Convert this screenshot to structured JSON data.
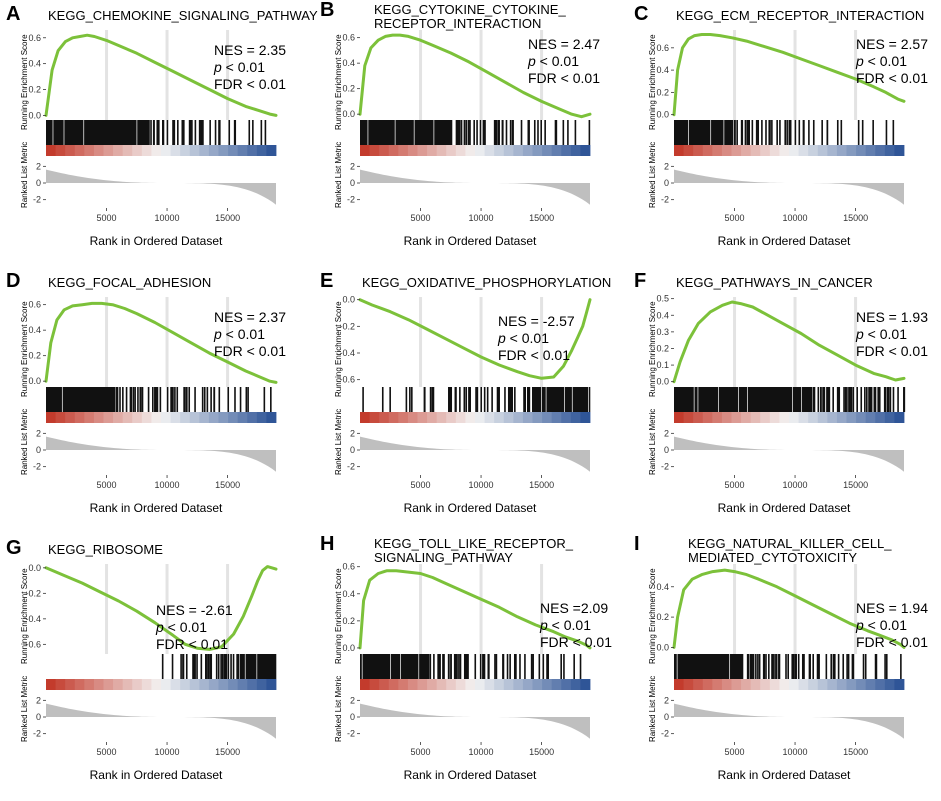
{
  "colors": {
    "curve": "#7cc13a",
    "hits": "#111111",
    "gridline": "#e3e3e3",
    "metric_fill": "#bfbfbf",
    "heat_high": "#c33b2c",
    "heat_mid": "#f3f3f3",
    "heat_low": "#2f5597"
  },
  "labels": {
    "y_running": "Running Enrichment Score",
    "y_ranked": "Ranked List Metric",
    "x_axis": "Rank in Ordered Dataset"
  },
  "chart_data": [
    {
      "type": "line",
      "panel": "A",
      "title_lines": [
        "KEGG_CHEMOKINE_SIGNALING_PATHWAY"
      ],
      "nes": "NES = 2.35",
      "p_label": "p",
      "p_rest": " < 0.01",
      "fdr": "FDR < 0.01",
      "xlim": [
        0,
        19000
      ],
      "ylim": [
        -0.02,
        0.66
      ],
      "yticks": [
        0.0,
        0.2,
        0.4,
        0.6
      ],
      "ytick_labels": [
        "0.0",
        "0.2",
        "0.4",
        "0.6"
      ],
      "xticks": [
        5000,
        10000,
        15000
      ],
      "xtick_labels": [
        "5000",
        "10000",
        "15000"
      ],
      "metric_ylim": [
        -3,
        3
      ],
      "metric_ticks": [
        2,
        0,
        -2
      ],
      "metric_tick_labels": [
        "2",
        "0",
        "-2"
      ],
      "es_curve": {
        "x": [
          0,
          500,
          1000,
          1600,
          2200,
          2800,
          3400,
          4000,
          5000,
          6000,
          7500,
          9000,
          10500,
          12000,
          13500,
          15000,
          16500,
          17500,
          18500,
          19000
        ],
        "y": [
          0.0,
          0.35,
          0.5,
          0.57,
          0.6,
          0.61,
          0.62,
          0.61,
          0.58,
          0.54,
          0.48,
          0.41,
          0.34,
          0.27,
          0.2,
          0.13,
          0.07,
          0.04,
          0.01,
          0.0
        ]
      },
      "hit_density": [
        1,
        1,
        1,
        1,
        1,
        1,
        1,
        1,
        1,
        0.9,
        0.8,
        0.7,
        0.55,
        0.5,
        0.45,
        0.4,
        0.3,
        0.25,
        0.2,
        0.15
      ]
    },
    {
      "type": "line",
      "panel": "B",
      "title_lines": [
        "KEGG_CYTOKINE_CYTOKINE_",
        "RECEPTOR_INTERACTION"
      ],
      "nes": "NES = 2.47",
      "p_label": "p",
      "p_rest": " < 0.01",
      "fdr": "FDR < 0.01",
      "xlim": [
        0,
        19000
      ],
      "ylim": [
        -0.03,
        0.66
      ],
      "yticks": [
        0.0,
        0.2,
        0.4,
        0.6
      ],
      "ytick_labels": [
        "0.0",
        "0.2",
        "0.4",
        "0.6"
      ],
      "xticks": [
        5000,
        10000,
        15000
      ],
      "xtick_labels": [
        "5000",
        "10000",
        "15000"
      ],
      "metric_ylim": [
        -3,
        3
      ],
      "metric_ticks": [
        2,
        0,
        -2
      ],
      "metric_tick_labels": [
        "2",
        "0",
        "-2"
      ],
      "es_curve": {
        "x": [
          0,
          400,
          900,
          1500,
          2100,
          2700,
          3300,
          4000,
          5000,
          6000,
          7500,
          9000,
          10500,
          12000,
          13500,
          15000,
          16500,
          17500,
          18300,
          19000
        ],
        "y": [
          0.0,
          0.38,
          0.52,
          0.58,
          0.61,
          0.62,
          0.62,
          0.61,
          0.58,
          0.54,
          0.48,
          0.41,
          0.33,
          0.25,
          0.17,
          0.1,
          0.04,
          0.0,
          -0.02,
          0.0
        ]
      },
      "hit_density": [
        1,
        1,
        1,
        1,
        1,
        1,
        1,
        1,
        0.9,
        0.8,
        0.7,
        0.6,
        0.55,
        0.5,
        0.45,
        0.4,
        0.35,
        0.3,
        0.25,
        0.2
      ]
    },
    {
      "type": "line",
      "panel": "C",
      "title_lines": [
        "KEGG_ECM_RECEPTOR_INTERACTION"
      ],
      "nes": "NES = 2.57",
      "p_label": "p",
      "p_rest": " < 0.01",
      "fdr": "FDR < 0.01",
      "xlim": [
        0,
        19000
      ],
      "ylim": [
        -0.03,
        0.76
      ],
      "yticks": [
        0.0,
        0.2,
        0.4,
        0.6
      ],
      "ytick_labels": [
        "0.0",
        "0.2",
        "0.4",
        "0.6"
      ],
      "xticks": [
        5000,
        10000,
        15000
      ],
      "xtick_labels": [
        "5000",
        "10000",
        "15000"
      ],
      "metric_ylim": [
        -3,
        3
      ],
      "metric_ticks": [
        2,
        0,
        -2
      ],
      "metric_tick_labels": [
        "2",
        "0",
        "-2"
      ],
      "es_curve": {
        "x": [
          0,
          300,
          700,
          1200,
          1700,
          2300,
          3000,
          3800,
          4800,
          6000,
          7500,
          9000,
          10500,
          12000,
          13500,
          15000,
          16500,
          17500,
          18500,
          19000
        ],
        "y": [
          0.0,
          0.4,
          0.6,
          0.68,
          0.71,
          0.72,
          0.72,
          0.71,
          0.69,
          0.66,
          0.61,
          0.56,
          0.5,
          0.44,
          0.38,
          0.32,
          0.25,
          0.2,
          0.14,
          0.12
        ]
      },
      "hit_density": [
        1,
        1,
        1,
        1,
        1,
        0.9,
        0.8,
        0.7,
        0.6,
        0.5,
        0.45,
        0.4,
        0.35,
        0.3,
        0.25,
        0.2,
        0.15,
        0.1,
        0.05,
        0.05
      ]
    },
    {
      "type": "line",
      "panel": "D",
      "title_lines": [
        "KEGG_FOCAL_ADHESION"
      ],
      "nes": "NES = 2.37",
      "p_label": "p",
      "p_rest": " < 0.01",
      "fdr": "FDR < 0.01",
      "xlim": [
        0,
        19000
      ],
      "ylim": [
        -0.03,
        0.66
      ],
      "yticks": [
        0.0,
        0.2,
        0.4,
        0.6
      ],
      "ytick_labels": [
        "0.0",
        "0.2",
        "0.4",
        "0.6"
      ],
      "xticks": [
        5000,
        10000,
        15000
      ],
      "xtick_labels": [
        "5000",
        "10000",
        "15000"
      ],
      "metric_ylim": [
        -3,
        3
      ],
      "metric_ticks": [
        2,
        0,
        -2
      ],
      "metric_tick_labels": [
        "2",
        "0",
        "-2"
      ],
      "es_curve": {
        "x": [
          0,
          400,
          900,
          1500,
          2200,
          3000,
          3800,
          4600,
          5500,
          6500,
          7500,
          9000,
          10500,
          12000,
          13500,
          15000,
          16500,
          17500,
          18500,
          19000
        ],
        "y": [
          0.0,
          0.3,
          0.48,
          0.56,
          0.59,
          0.6,
          0.61,
          0.61,
          0.6,
          0.57,
          0.53,
          0.46,
          0.38,
          0.3,
          0.22,
          0.15,
          0.08,
          0.04,
          0.0,
          -0.01
        ]
      },
      "hit_density": [
        1,
        1,
        1,
        1,
        1,
        1,
        0.9,
        0.85,
        0.8,
        0.7,
        0.6,
        0.55,
        0.5,
        0.45,
        0.4,
        0.35,
        0.3,
        0.25,
        0.2,
        0.15
      ]
    },
    {
      "type": "line",
      "panel": "E",
      "title_lines": [
        "KEGG_OXIDATIVE_PHOSPHORYLATION"
      ],
      "nes": "NES = -2.57",
      "p_label": "p",
      "p_rest": " < 0.01",
      "fdr": "FDR < 0.01",
      "xlim": [
        0,
        19000
      ],
      "ylim": [
        -0.64,
        0.02
      ],
      "yticks": [
        0.0,
        -0.2,
        -0.4,
        -0.6
      ],
      "ytick_labels": [
        "0.0",
        "-0.2",
        "-0.4",
        "-0.6"
      ],
      "xticks": [
        5000,
        10000,
        15000
      ],
      "xtick_labels": [
        "5000",
        "10000",
        "15000"
      ],
      "metric_ylim": [
        -3,
        3
      ],
      "metric_ticks": [
        2,
        0,
        -2
      ],
      "metric_tick_labels": [
        "2",
        "0",
        "-2"
      ],
      "es_curve": {
        "x": [
          0,
          1000,
          2500,
          4000,
          5500,
          7000,
          8500,
          10000,
          11500,
          13000,
          14000,
          15000,
          16000,
          16800,
          17500,
          18000,
          18400,
          18700,
          19000
        ],
        "y": [
          0.0,
          -0.04,
          -0.09,
          -0.15,
          -0.22,
          -0.29,
          -0.36,
          -0.43,
          -0.49,
          -0.54,
          -0.57,
          -0.59,
          -0.58,
          -0.5,
          -0.38,
          -0.28,
          -0.2,
          -0.1,
          0.0
        ]
      },
      "hit_density": [
        0.05,
        0.1,
        0.15,
        0.2,
        0.25,
        0.3,
        0.4,
        0.45,
        0.5,
        0.5,
        0.55,
        0.55,
        0.6,
        0.7,
        0.8,
        1,
        1,
        1,
        1,
        1
      ]
    },
    {
      "type": "line",
      "panel": "F",
      "title_lines": [
        "KEGG_PATHWAYS_IN_CANCER"
      ],
      "nes": "NES = 1.93",
      "p_label": "p",
      "p_rest": " < 0.01",
      "fdr": "FDR < 0.01",
      "xlim": [
        0,
        19000
      ],
      "ylim": [
        -0.02,
        0.51
      ],
      "yticks": [
        0.0,
        0.1,
        0.2,
        0.3,
        0.4,
        0.5
      ],
      "ytick_labels": [
        "0.0",
        "0.1",
        "0.2",
        "0.3",
        "0.4",
        "0.5"
      ],
      "xticks": [
        5000,
        10000,
        15000
      ],
      "xtick_labels": [
        "5000",
        "10000",
        "15000"
      ],
      "metric_ylim": [
        -3,
        3
      ],
      "metric_ticks": [
        2,
        0,
        -2
      ],
      "metric_tick_labels": [
        "2",
        "0",
        "-2"
      ],
      "es_curve": {
        "x": [
          0,
          500,
          1200,
          2000,
          3000,
          4000,
          4800,
          5500,
          6500,
          7500,
          9000,
          10500,
          12000,
          13500,
          15000,
          16500,
          17500,
          18300,
          19000
        ],
        "y": [
          0.0,
          0.12,
          0.25,
          0.35,
          0.42,
          0.46,
          0.48,
          0.47,
          0.45,
          0.41,
          0.35,
          0.29,
          0.22,
          0.16,
          0.1,
          0.05,
          0.03,
          0.01,
          0.02
        ]
      },
      "hit_density": [
        1,
        1,
        1,
        1,
        1,
        1,
        1,
        1,
        1,
        1,
        1,
        1,
        0.95,
        0.9,
        0.9,
        0.85,
        0.85,
        0.8,
        0.8,
        0.75
      ]
    },
    {
      "type": "line",
      "panel": "G",
      "title_lines": [
        "KEGG_RIBOSOME"
      ],
      "nes": "NES = -2.61",
      "p_label": "p",
      "p_rest": " < 0.01",
      "fdr": "FDR < 0.01",
      "xlim": [
        0,
        19000
      ],
      "ylim": [
        -0.66,
        0.03
      ],
      "yticks": [
        0.0,
        -0.2,
        -0.4,
        -0.6
      ],
      "ytick_labels": [
        "0.0",
        "-0.2",
        "-0.4",
        "-0.6"
      ],
      "xticks": [
        5000,
        10000,
        15000
      ],
      "xtick_labels": [
        "5000",
        "10000",
        "15000"
      ],
      "metric_ylim": [
        -3,
        3
      ],
      "metric_ticks": [
        2,
        0,
        -2
      ],
      "metric_tick_labels": [
        "2",
        "0",
        "-2"
      ],
      "es_curve": {
        "x": [
          0,
          1500,
          3000,
          4500,
          6000,
          7500,
          9000,
          10500,
          11500,
          12500,
          13500,
          14500,
          15500,
          16300,
          17000,
          17500,
          17900,
          18300,
          19000
        ],
        "y": [
          0.0,
          -0.06,
          -0.12,
          -0.19,
          -0.26,
          -0.34,
          -0.43,
          -0.53,
          -0.6,
          -0.63,
          -0.64,
          -0.62,
          -0.52,
          -0.38,
          -0.22,
          -0.1,
          -0.02,
          0.01,
          -0.01
        ]
      },
      "hit_density": [
        0,
        0,
        0,
        0,
        0,
        0,
        0,
        0,
        0,
        0,
        0.3,
        0.4,
        0.5,
        0.6,
        0.8,
        0.9,
        0.9,
        1,
        1,
        1
      ]
    },
    {
      "type": "line",
      "panel": "H",
      "title_lines": [
        "KEGG_TOLL_LIKE_RECEPTOR_",
        "SIGNALING_PATHWAY"
      ],
      "nes": "NES =2.09",
      "p_label": "p",
      "p_rest": " < 0.01",
      "fdr": "FDR < 0.01",
      "xlim": [
        0,
        19000
      ],
      "ylim": [
        -0.03,
        0.62
      ],
      "yticks": [
        0.0,
        0.2,
        0.4,
        0.6
      ],
      "ytick_labels": [
        "0.0",
        "0.2",
        "0.4",
        "0.6"
      ],
      "xticks": [
        5000,
        10000,
        15000
      ],
      "xtick_labels": [
        "5000",
        "10000",
        "15000"
      ],
      "metric_ylim": [
        -3,
        3
      ],
      "metric_ticks": [
        2,
        0,
        -2
      ],
      "metric_tick_labels": [
        "2",
        "0",
        "-2"
      ],
      "es_curve": {
        "x": [
          0,
          300,
          800,
          1500,
          2200,
          3000,
          4000,
          5000,
          6000,
          7000,
          8500,
          10000,
          11500,
          13000,
          14500,
          16000,
          17000,
          18000,
          18700,
          19000
        ],
        "y": [
          0.0,
          0.35,
          0.5,
          0.55,
          0.57,
          0.57,
          0.56,
          0.55,
          0.52,
          0.48,
          0.42,
          0.36,
          0.3,
          0.23,
          0.17,
          0.12,
          0.08,
          0.05,
          0.02,
          0.0
        ]
      },
      "hit_density": [
        1,
        1,
        1,
        1,
        1,
        1,
        0.9,
        0.8,
        0.7,
        0.65,
        0.6,
        0.55,
        0.5,
        0.45,
        0.4,
        0.35,
        0.3,
        0.25,
        0.2,
        0.15
      ]
    },
    {
      "type": "line",
      "panel": "I",
      "title_lines": [
        "KEGG_NATURAL_KILLER_CELL_",
        "MEDIATED_CYTOTOXICITY"
      ],
      "nes": "NES = 1.94",
      "p_label": "p",
      "p_rest": " < 0.01",
      "fdr": "FDR < 0.01",
      "xlim": [
        0,
        19000
      ],
      "ylim": [
        -0.03,
        0.55
      ],
      "yticks": [
        0.0,
        0.2,
        0.4
      ],
      "ytick_labels": [
        "0.0",
        "0.2",
        "0.4"
      ],
      "xticks": [
        5000,
        10000,
        15000
      ],
      "xtick_labels": [
        "5000",
        "10000",
        "15000"
      ],
      "metric_ylim": [
        -3,
        3
      ],
      "metric_ticks": [
        2,
        0,
        -2
      ],
      "metric_tick_labels": [
        "2",
        "0",
        "-2"
      ],
      "es_curve": {
        "x": [
          0,
          300,
          800,
          1500,
          2300,
          3200,
          4200,
          5000,
          6000,
          7000,
          8500,
          10000,
          11500,
          13000,
          14500,
          16000,
          17000,
          18000,
          18700,
          19000
        ],
        "y": [
          0.0,
          0.2,
          0.38,
          0.45,
          0.48,
          0.5,
          0.51,
          0.5,
          0.48,
          0.45,
          0.4,
          0.34,
          0.28,
          0.22,
          0.16,
          0.11,
          0.08,
          0.05,
          0.02,
          0.0
        ]
      },
      "hit_density": [
        1,
        1,
        1,
        1,
        1,
        1,
        0.9,
        0.85,
        0.8,
        0.7,
        0.65,
        0.6,
        0.55,
        0.5,
        0.45,
        0.4,
        0.35,
        0.3,
        0.25,
        0.2
      ]
    }
  ]
}
